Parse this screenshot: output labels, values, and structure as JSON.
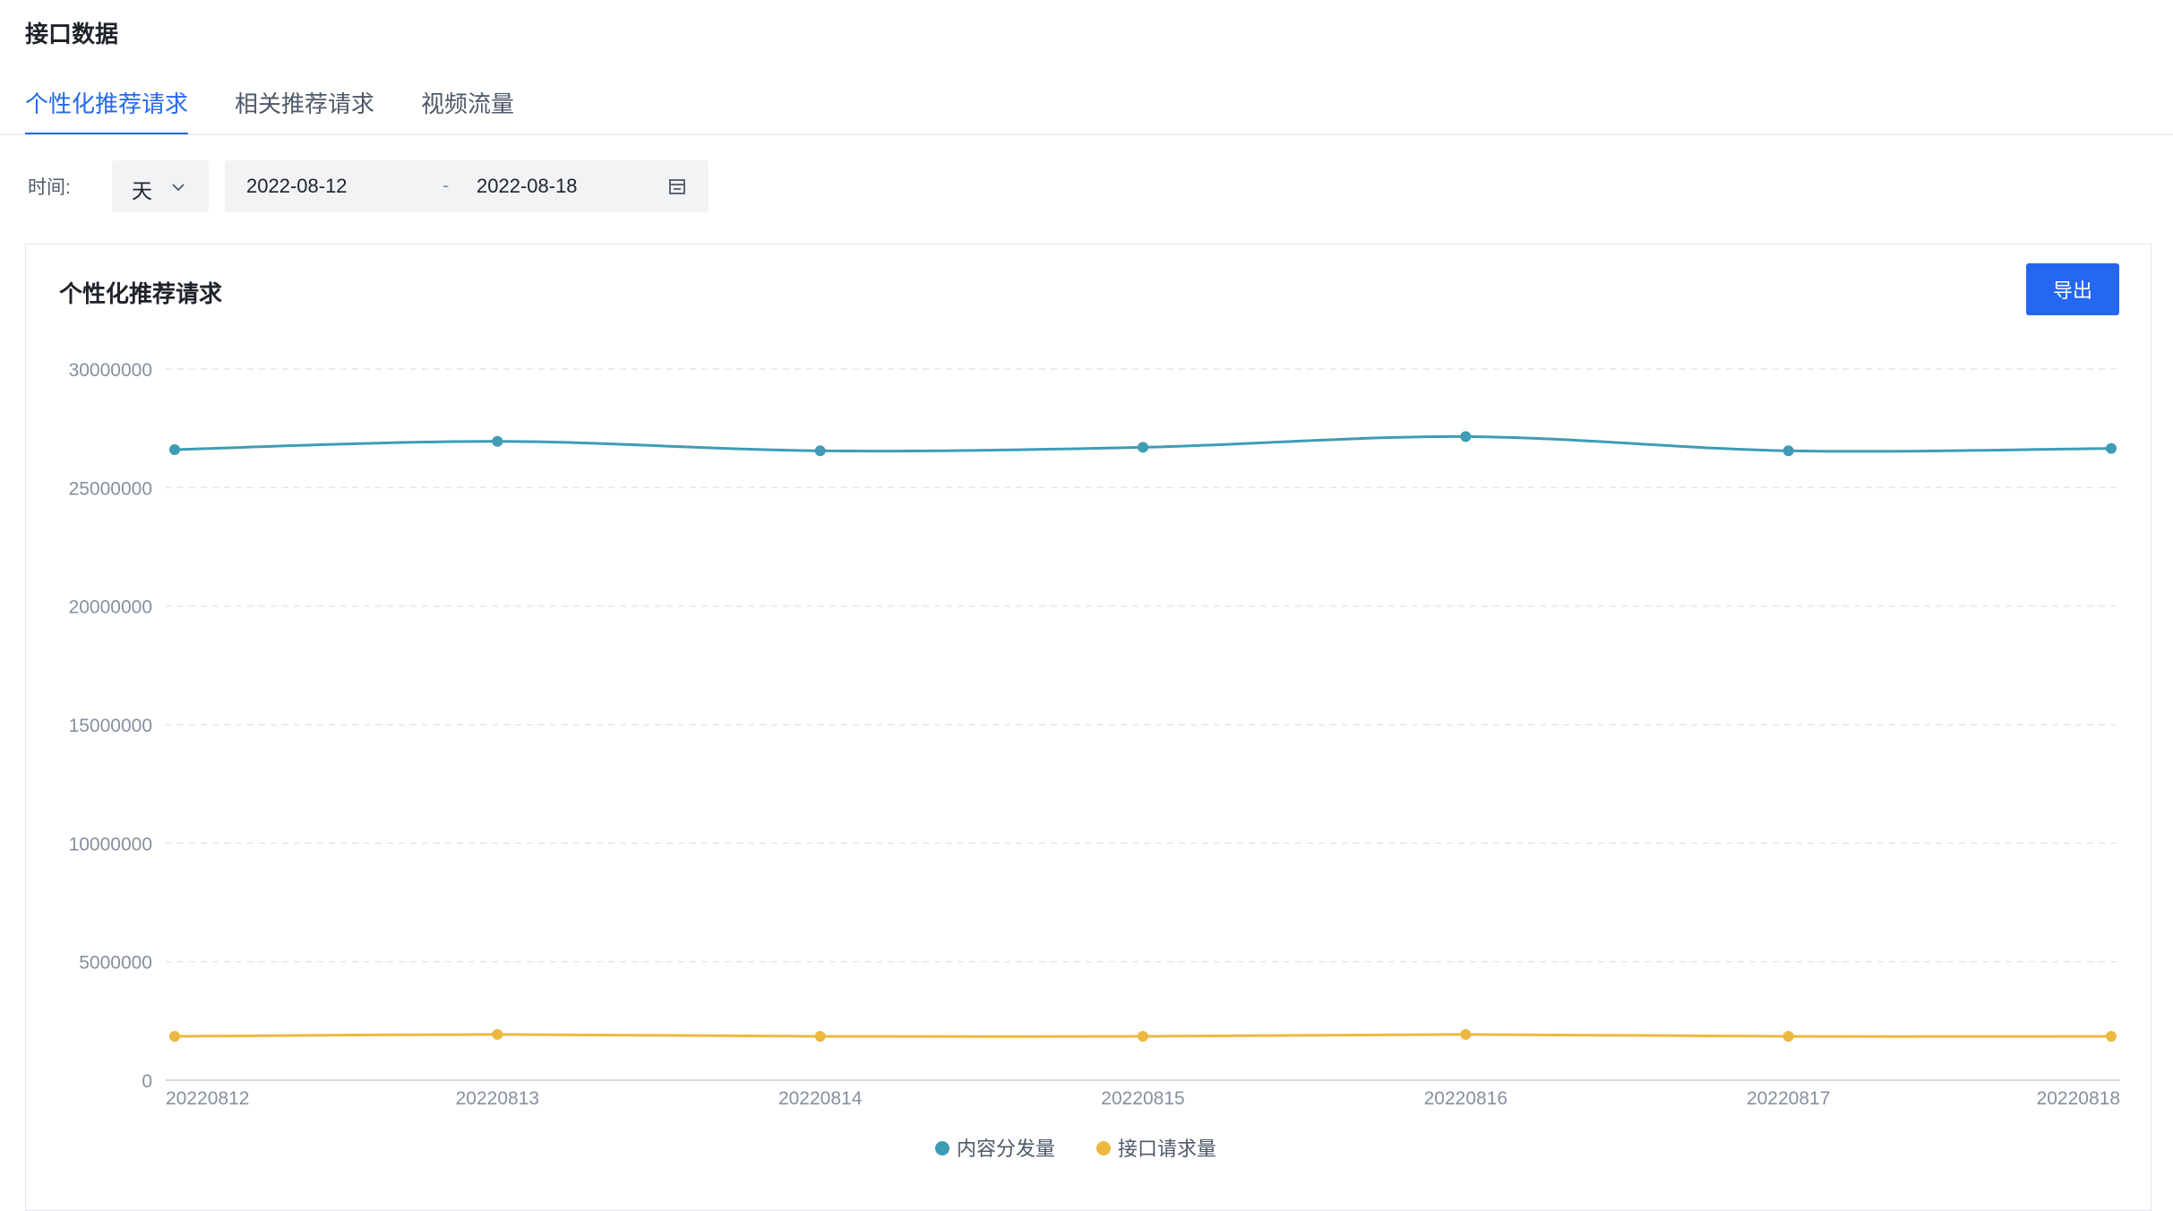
{
  "page": {
    "title": "接口数据"
  },
  "tabs": [
    {
      "label": "个性化推荐请求",
      "active": true
    },
    {
      "label": "相关推荐请求",
      "active": false
    },
    {
      "label": "视频流量",
      "active": false
    }
  ],
  "filters": {
    "time_label": "时间:",
    "granularity": "天",
    "start_date": "2022-08-12",
    "separator": "-",
    "end_date": "2022-08-18"
  },
  "card": {
    "title": "个性化推荐请求",
    "export_label": "导出"
  },
  "colors": {
    "accent": "#2468f2",
    "series_1": "#3e9cb4",
    "series_2": "#edb83f",
    "grid": "#e5e6eb"
  },
  "chart_data": {
    "type": "line",
    "title": "个性化推荐请求",
    "x": [
      "20220812",
      "20220813",
      "20220814",
      "20220815",
      "20220816",
      "20220817",
      "20220818"
    ],
    "ylim": [
      0,
      30000000
    ],
    "yticks": [
      "0",
      "5000000",
      "10000000",
      "15000000",
      "20000000",
      "25000000",
      "30000000"
    ],
    "grid": true,
    "legend_position": "bottom-center",
    "series": [
      {
        "name": "内容分发量",
        "color": "#3e9cb4",
        "values": [
          26600000,
          26950000,
          26550000,
          26700000,
          27150000,
          26550000,
          26650000
        ]
      },
      {
        "name": "接口请求量",
        "color": "#edb83f",
        "values": [
          1850000,
          1930000,
          1850000,
          1850000,
          1930000,
          1850000,
          1850000
        ]
      }
    ]
  }
}
